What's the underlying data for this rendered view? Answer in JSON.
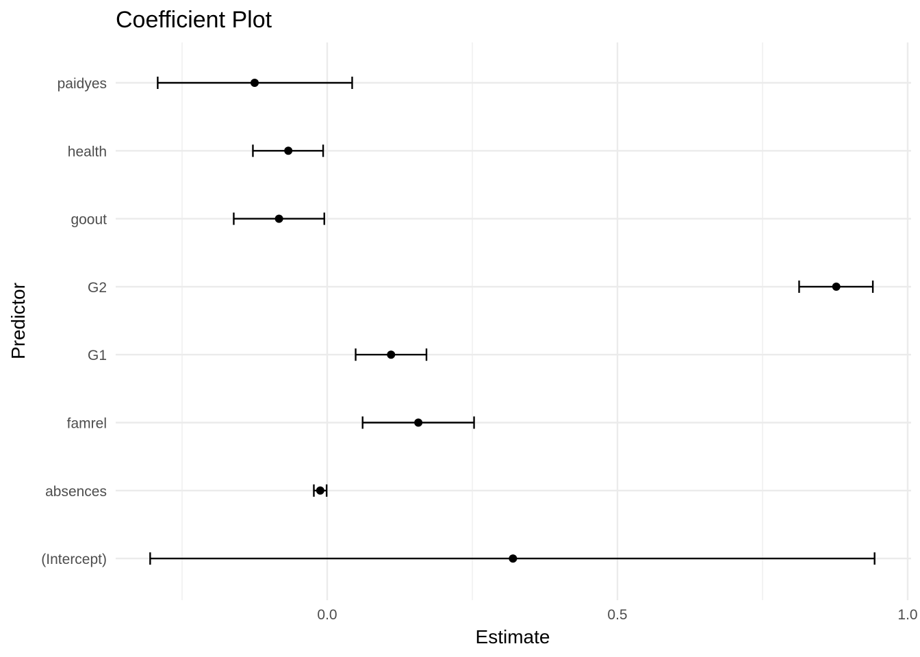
{
  "chart_data": {
    "type": "scatter",
    "title": "Coefficient Plot",
    "xlabel": "Estimate",
    "ylabel": "Predictor",
    "xlim": [
      -0.37,
      1.0
    ],
    "xticks": [
      0.0,
      0.5,
      1.0
    ],
    "xtick_labels": [
      "0.0",
      "0.5",
      "1.0"
    ],
    "x_minor_grid": [
      -0.25,
      0.25,
      0.75
    ],
    "grid": true,
    "categories": [
      "(Intercept)",
      "absences",
      "famrel",
      "G1",
      "G2",
      "goout",
      "health",
      "paidyes"
    ],
    "estimates": [
      0.32,
      -0.012,
      0.157,
      0.11,
      0.877,
      -0.083,
      -0.067,
      -0.125
    ],
    "ci_lower": [
      -0.305,
      -0.023,
      0.061,
      0.049,
      0.813,
      -0.161,
      -0.128,
      -0.292
    ],
    "ci_upper": [
      0.943,
      -0.001,
      0.253,
      0.171,
      0.94,
      -0.005,
      -0.007,
      0.043
    ]
  }
}
